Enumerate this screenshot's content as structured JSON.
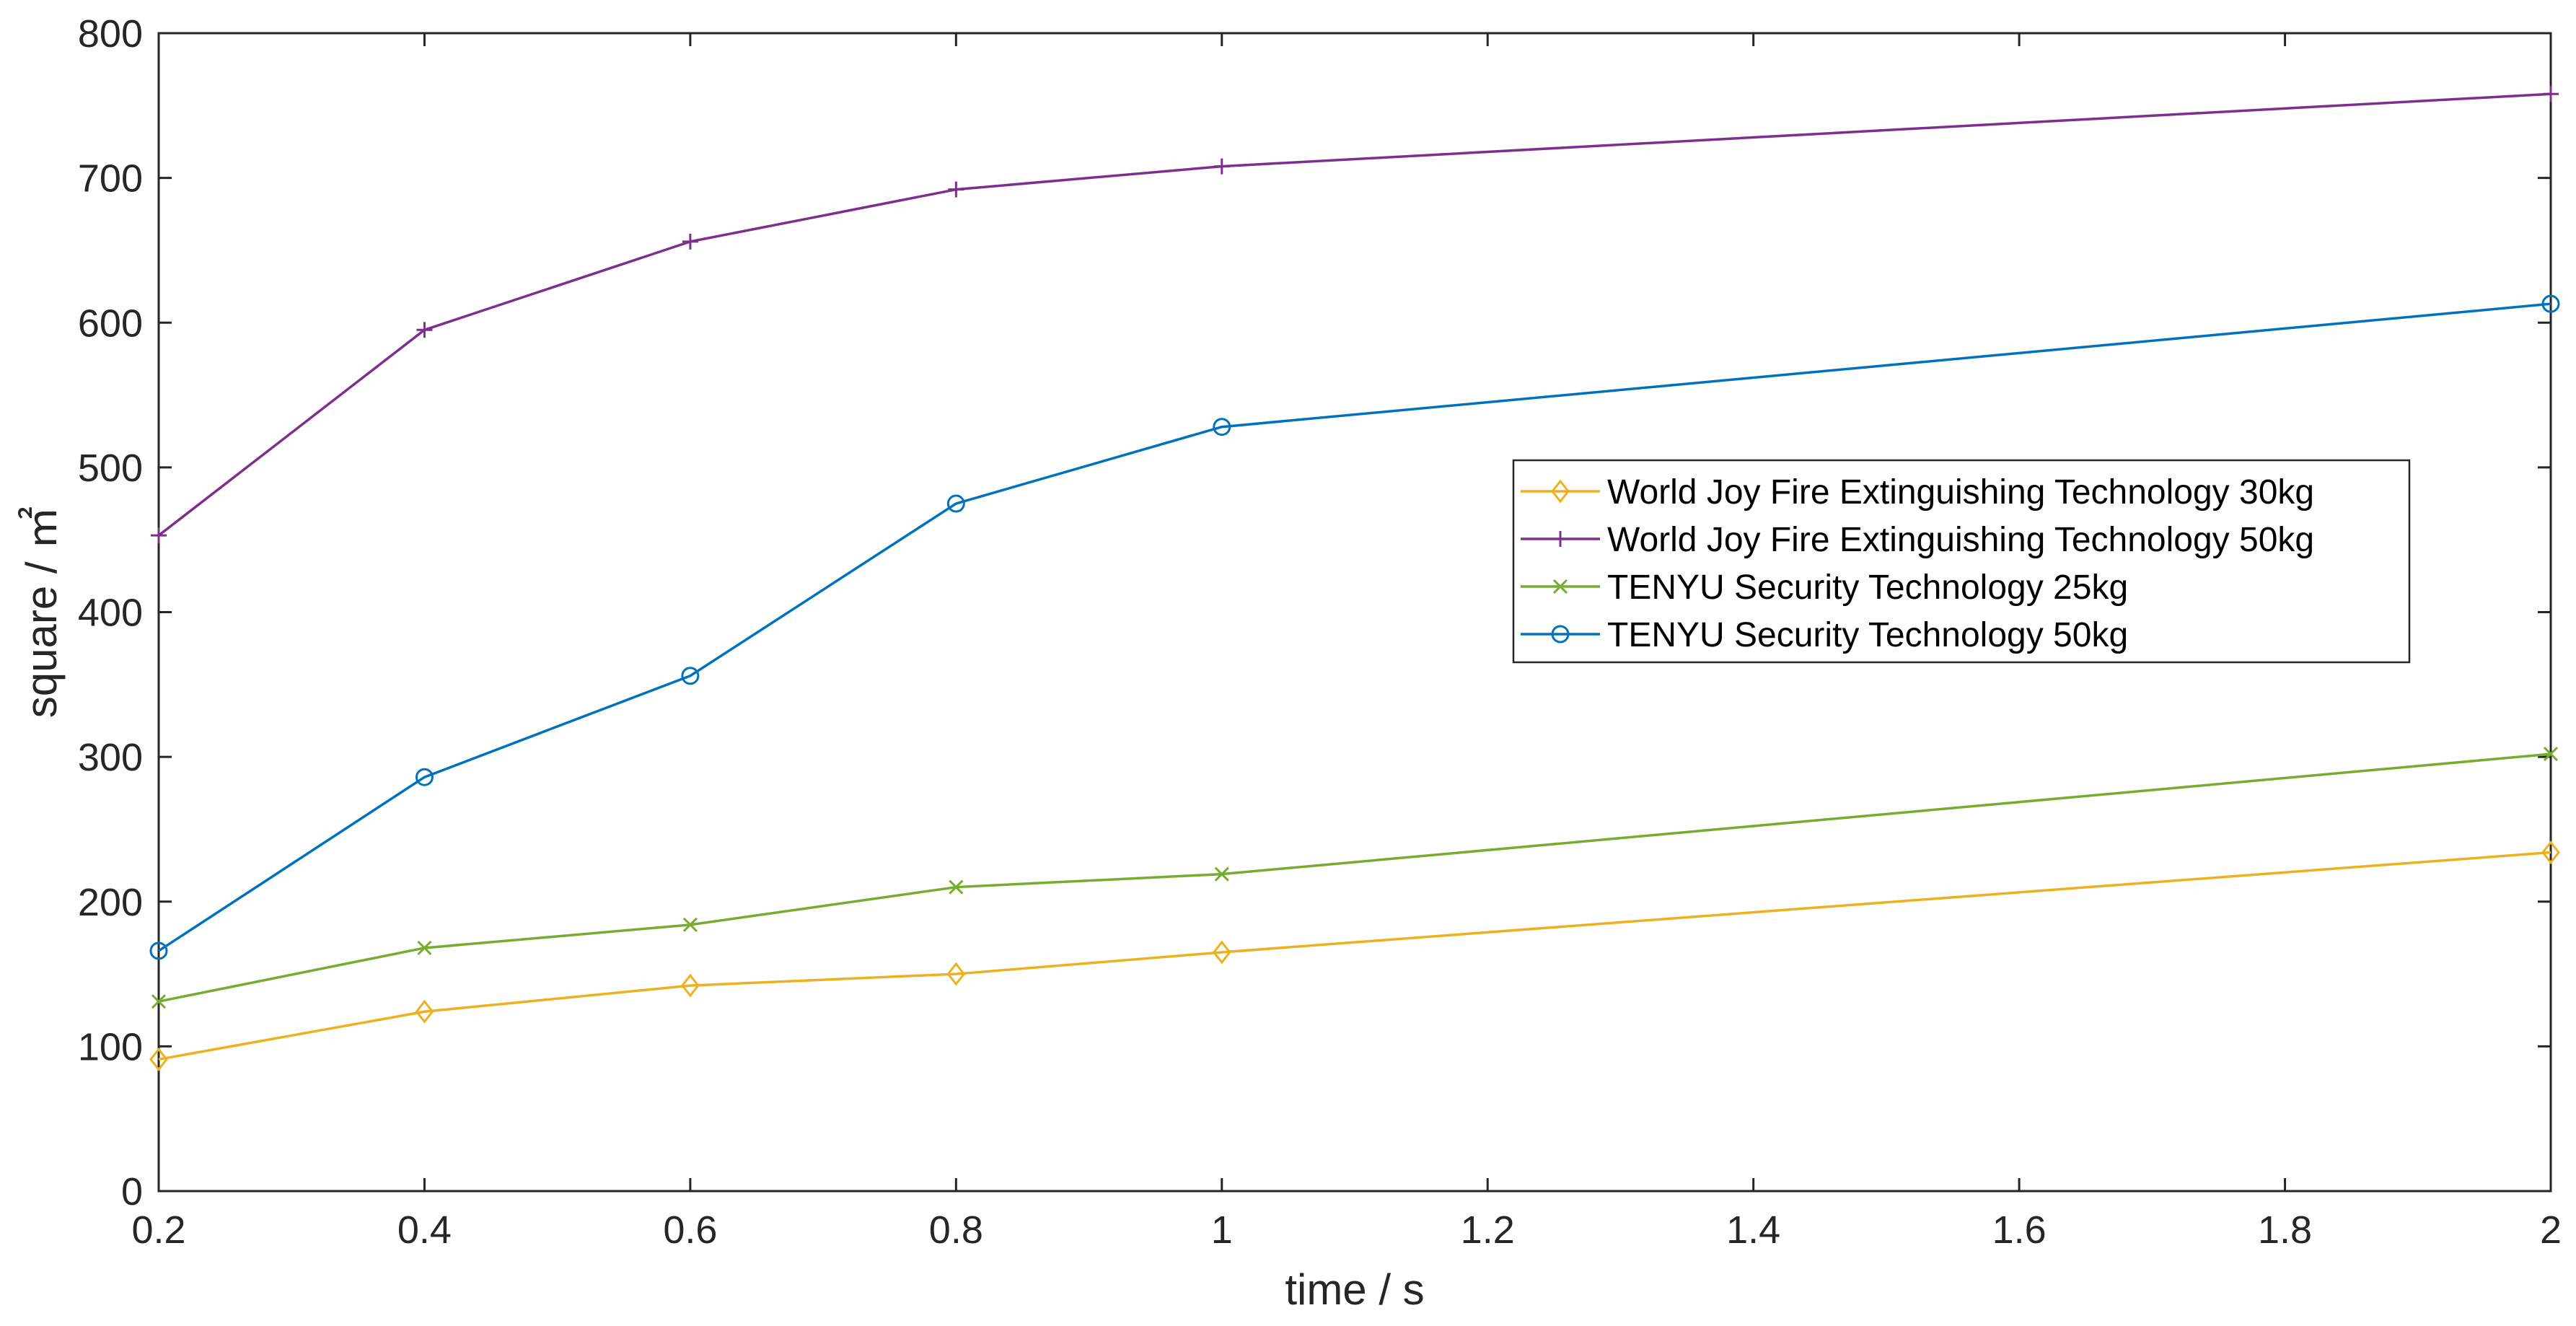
{
  "chart_data": {
    "type": "line",
    "title": "",
    "xlabel": "time / s",
    "ylabel": "square / ㎡",
    "xlim": [
      0.2,
      2
    ],
    "ylim": [
      0,
      800
    ],
    "x_ticks": [
      "0.2",
      "0.4",
      "0.6",
      "0.8",
      "1",
      "1.2",
      "1.4",
      "1.6",
      "1.8",
      "2"
    ],
    "y_ticks": [
      "0",
      "100",
      "200",
      "300",
      "400",
      "500",
      "600",
      "700",
      "800"
    ],
    "grid": false,
    "legend_position": "center-right",
    "x": [
      0.2,
      0.4,
      0.6,
      0.8,
      1,
      2
    ],
    "series": [
      {
        "name": "World Joy Fire Extinguishing Technology 30kg",
        "color": "#EDB120",
        "marker": "diamond",
        "values": [
          91,
          124,
          142,
          150,
          165,
          234
        ]
      },
      {
        "name": "World Joy Fire Extinguishing Technology 50kg",
        "color": "#7E2F8E",
        "marker": "plus",
        "values": [
          453,
          595,
          656,
          692,
          708,
          758
        ]
      },
      {
        "name": "TENYU Security Technology 25kg",
        "color": "#77AC30",
        "marker": "x",
        "values": [
          131,
          168,
          184,
          210,
          219,
          302
        ]
      },
      {
        "name": "TENYU Security Technology 50kg",
        "color": "#0072BD",
        "marker": "circle",
        "values": [
          166,
          286,
          356,
          475,
          528,
          613
        ]
      }
    ]
  }
}
